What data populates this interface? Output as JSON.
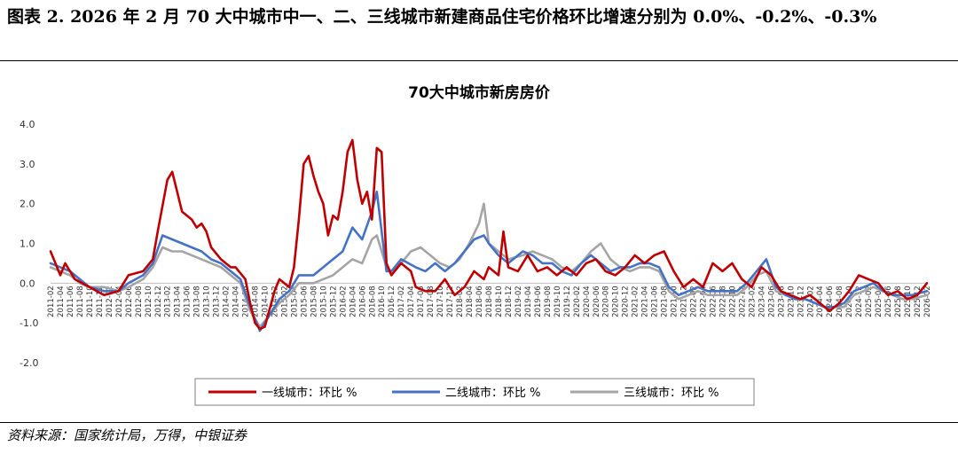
{
  "figure": {
    "title": "图表 2. 2026 年 2 月 70 大中城市中一、二、三线城市新建商品住宅价格环比增速分别为 0.0%、-0.2%、-0.3%",
    "source": "资料来源：国家统计局，万得，中银证券"
  },
  "chart_data": {
    "type": "line",
    "title": "70大中城市新房房价",
    "xlabel": "",
    "ylabel": "",
    "ylim": [
      -2.0,
      4.0
    ],
    "yticks": [
      "4.0",
      "3.0",
      "2.0",
      "1.0",
      "0.0",
      "-1.0",
      "-2.0"
    ],
    "grid": false,
    "legend_position": "bottom",
    "x_start": "2011-02",
    "x_end": "2026-02",
    "x_tick_step_months": 2,
    "series": [
      {
        "name": "一线城市：环比 %",
        "color": "#c00000",
        "points": [
          [
            "2011-02",
            0.8
          ],
          [
            "2011-04",
            0.2
          ],
          [
            "2011-05",
            0.5
          ],
          [
            "2011-07",
            0.1
          ],
          [
            "2011-10",
            -0.1
          ],
          [
            "2012-01",
            -0.3
          ],
          [
            "2012-04",
            -0.2
          ],
          [
            "2012-06",
            0.2
          ],
          [
            "2012-09",
            0.3
          ],
          [
            "2012-11",
            0.6
          ],
          [
            "2012-12",
            1.3
          ],
          [
            "2013-02",
            2.6
          ],
          [
            "2013-03",
            2.8
          ],
          [
            "2013-04",
            2.3
          ],
          [
            "2013-05",
            1.8
          ],
          [
            "2013-07",
            1.6
          ],
          [
            "2013-08",
            1.4
          ],
          [
            "2013-09",
            1.5
          ],
          [
            "2013-10",
            1.3
          ],
          [
            "2013-11",
            0.9
          ],
          [
            "2014-01",
            0.6
          ],
          [
            "2014-03",
            0.4
          ],
          [
            "2014-04",
            0.4
          ],
          [
            "2014-06",
            0.1
          ],
          [
            "2014-07",
            -0.5
          ],
          [
            "2014-08",
            -1.0
          ],
          [
            "2014-09",
            -1.15
          ],
          [
            "2014-10",
            -1.1
          ],
          [
            "2014-12",
            -0.2
          ],
          [
            "2015-01",
            0.1
          ],
          [
            "2015-03",
            -0.1
          ],
          [
            "2015-04",
            0.4
          ],
          [
            "2015-05",
            1.6
          ],
          [
            "2015-06",
            3.0
          ],
          [
            "2015-07",
            3.2
          ],
          [
            "2015-08",
            2.7
          ],
          [
            "2015-09",
            2.3
          ],
          [
            "2015-10",
            2.0
          ],
          [
            "2015-11",
            1.2
          ],
          [
            "2015-12",
            1.7
          ],
          [
            "2016-01",
            1.6
          ],
          [
            "2016-02",
            2.3
          ],
          [
            "2016-03",
            3.3
          ],
          [
            "2016-04",
            3.6
          ],
          [
            "2016-05",
            2.6
          ],
          [
            "2016-06",
            2.0
          ],
          [
            "2016-07",
            2.3
          ],
          [
            "2016-08",
            1.6
          ],
          [
            "2016-09",
            3.4
          ],
          [
            "2016-10",
            3.3
          ],
          [
            "2016-11",
            0.5
          ],
          [
            "2016-12",
            0.2
          ],
          [
            "2017-02",
            0.5
          ],
          [
            "2017-04",
            0.3
          ],
          [
            "2017-05",
            -0.1
          ],
          [
            "2017-07",
            -0.2
          ],
          [
            "2017-09",
            -0.2
          ],
          [
            "2017-11",
            0.1
          ],
          [
            "2018-01",
            -0.3
          ],
          [
            "2018-03",
            -0.1
          ],
          [
            "2018-05",
            0.3
          ],
          [
            "2018-07",
            0.1
          ],
          [
            "2018-08",
            0.4
          ],
          [
            "2018-09",
            0.3
          ],
          [
            "2018-10",
            0.2
          ],
          [
            "2018-11",
            1.3
          ],
          [
            "2018-12",
            0.4
          ],
          [
            "2019-02",
            0.3
          ],
          [
            "2019-04",
            0.7
          ],
          [
            "2019-06",
            0.3
          ],
          [
            "2019-08",
            0.4
          ],
          [
            "2019-10",
            0.2
          ],
          [
            "2019-12",
            0.4
          ],
          [
            "2020-02",
            0.2
          ],
          [
            "2020-04",
            0.5
          ],
          [
            "2020-06",
            0.6
          ],
          [
            "2020-08",
            0.3
          ],
          [
            "2020-10",
            0.2
          ],
          [
            "2020-12",
            0.4
          ],
          [
            "2021-02",
            0.7
          ],
          [
            "2021-04",
            0.5
          ],
          [
            "2021-06",
            0.7
          ],
          [
            "2021-08",
            0.8
          ],
          [
            "2021-10",
            0.3
          ],
          [
            "2021-12",
            -0.1
          ],
          [
            "2022-02",
            0.1
          ],
          [
            "2022-04",
            -0.1
          ],
          [
            "2022-06",
            0.5
          ],
          [
            "2022-08",
            0.3
          ],
          [
            "2022-10",
            0.5
          ],
          [
            "2022-12",
            0.1
          ],
          [
            "2023-02",
            -0.1
          ],
          [
            "2023-04",
            0.4
          ],
          [
            "2023-06",
            0.2
          ],
          [
            "2023-08",
            -0.2
          ],
          [
            "2023-10",
            -0.3
          ],
          [
            "2023-12",
            -0.4
          ],
          [
            "2024-02",
            -0.3
          ],
          [
            "2024-04",
            -0.5
          ],
          [
            "2024-06",
            -0.7
          ],
          [
            "2024-08",
            -0.5
          ],
          [
            "2024-10",
            -0.2
          ],
          [
            "2024-12",
            0.2
          ],
          [
            "2025-02",
            0.1
          ],
          [
            "2025-04",
            0.0
          ],
          [
            "2025-06",
            -0.3
          ],
          [
            "2025-08",
            -0.2
          ],
          [
            "2025-10",
            -0.4
          ],
          [
            "2025-12",
            -0.3
          ],
          [
            "2026-02",
            0.0
          ]
        ]
      },
      {
        "name": "二线城市：环比 %",
        "color": "#4472c4",
        "points": [
          [
            "2011-02",
            0.5
          ],
          [
            "2011-04",
            0.4
          ],
          [
            "2011-06",
            0.3
          ],
          [
            "2011-08",
            0.1
          ],
          [
            "2011-10",
            -0.1
          ],
          [
            "2012-01",
            -0.2
          ],
          [
            "2012-04",
            -0.2
          ],
          [
            "2012-06",
            0.0
          ],
          [
            "2012-09",
            0.2
          ],
          [
            "2012-11",
            0.5
          ],
          [
            "2013-01",
            1.2
          ],
          [
            "2013-03",
            1.1
          ],
          [
            "2013-05",
            1.0
          ],
          [
            "2013-07",
            0.9
          ],
          [
            "2013-09",
            0.8
          ],
          [
            "2013-11",
            0.6
          ],
          [
            "2014-01",
            0.5
          ],
          [
            "2014-03",
            0.3
          ],
          [
            "2014-05",
            0.1
          ],
          [
            "2014-07",
            -0.6
          ],
          [
            "2014-09",
            -1.2
          ],
          [
            "2014-11",
            -0.8
          ],
          [
            "2015-01",
            -0.4
          ],
          [
            "2015-03",
            -0.2
          ],
          [
            "2015-05",
            0.2
          ],
          [
            "2015-08",
            0.2
          ],
          [
            "2015-10",
            0.4
          ],
          [
            "2015-12",
            0.6
          ],
          [
            "2016-02",
            0.8
          ],
          [
            "2016-04",
            1.4
          ],
          [
            "2016-06",
            1.1
          ],
          [
            "2016-08",
            1.8
          ],
          [
            "2016-09",
            2.3
          ],
          [
            "2016-11",
            0.3
          ],
          [
            "2016-12",
            0.3
          ],
          [
            "2017-02",
            0.6
          ],
          [
            "2017-05",
            0.4
          ],
          [
            "2017-07",
            0.3
          ],
          [
            "2017-09",
            0.5
          ],
          [
            "2017-11",
            0.3
          ],
          [
            "2018-01",
            0.5
          ],
          [
            "2018-03",
            0.8
          ],
          [
            "2018-05",
            1.1
          ],
          [
            "2018-07",
            1.2
          ],
          [
            "2018-08",
            1.0
          ],
          [
            "2018-10",
            0.7
          ],
          [
            "2018-12",
            0.5
          ],
          [
            "2019-03",
            0.8
          ],
          [
            "2019-05",
            0.7
          ],
          [
            "2019-07",
            0.5
          ],
          [
            "2019-09",
            0.5
          ],
          [
            "2019-11",
            0.3
          ],
          [
            "2020-01",
            0.2
          ],
          [
            "2020-03",
            0.5
          ],
          [
            "2020-05",
            0.7
          ],
          [
            "2020-07",
            0.5
          ],
          [
            "2020-09",
            0.3
          ],
          [
            "2020-11",
            0.4
          ],
          [
            "2021-01",
            0.4
          ],
          [
            "2021-03",
            0.5
          ],
          [
            "2021-05",
            0.5
          ],
          [
            "2021-07",
            0.4
          ],
          [
            "2021-09",
            -0.1
          ],
          [
            "2021-11",
            -0.3
          ],
          [
            "2022-01",
            -0.2
          ],
          [
            "2022-03",
            -0.1
          ],
          [
            "2022-05",
            -0.2
          ],
          [
            "2022-07",
            -0.2
          ],
          [
            "2022-09",
            -0.2
          ],
          [
            "2022-11",
            -0.2
          ],
          [
            "2023-01",
            0.0
          ],
          [
            "2023-03",
            0.3
          ],
          [
            "2023-05",
            0.6
          ],
          [
            "2023-07",
            -0.1
          ],
          [
            "2023-09",
            -0.3
          ],
          [
            "2023-11",
            -0.4
          ],
          [
            "2024-01",
            -0.4
          ],
          [
            "2024-03",
            -0.5
          ],
          [
            "2024-05",
            -0.6
          ],
          [
            "2024-07",
            -0.6
          ],
          [
            "2024-09",
            -0.5
          ],
          [
            "2024-11",
            -0.2
          ],
          [
            "2025-01",
            -0.1
          ],
          [
            "2025-03",
            0.0
          ],
          [
            "2025-05",
            -0.2
          ],
          [
            "2025-07",
            -0.3
          ],
          [
            "2025-09",
            -0.3
          ],
          [
            "2025-11",
            -0.3
          ],
          [
            "2026-02",
            -0.2
          ]
        ]
      },
      {
        "name": "三线城市：环比 %",
        "color": "#a5a5a5",
        "points": [
          [
            "2011-02",
            0.4
          ],
          [
            "2011-04",
            0.3
          ],
          [
            "2011-06",
            0.2
          ],
          [
            "2011-08",
            0.0
          ],
          [
            "2011-10",
            -0.1
          ],
          [
            "2012-01",
            -0.1
          ],
          [
            "2012-04",
            -0.2
          ],
          [
            "2012-06",
            -0.1
          ],
          [
            "2012-09",
            0.1
          ],
          [
            "2012-11",
            0.4
          ],
          [
            "2013-01",
            0.9
          ],
          [
            "2013-03",
            0.8
          ],
          [
            "2013-05",
            0.8
          ],
          [
            "2013-07",
            0.7
          ],
          [
            "2013-09",
            0.6
          ],
          [
            "2013-11",
            0.5
          ],
          [
            "2014-01",
            0.4
          ],
          [
            "2014-03",
            0.2
          ],
          [
            "2014-05",
            0.0
          ],
          [
            "2014-07",
            -0.7
          ],
          [
            "2014-09",
            -1.1
          ],
          [
            "2014-11",
            -0.8
          ],
          [
            "2015-01",
            -0.5
          ],
          [
            "2015-03",
            -0.3
          ],
          [
            "2015-05",
            0.0
          ],
          [
            "2015-08",
            0.0
          ],
          [
            "2015-10",
            0.1
          ],
          [
            "2015-12",
            0.2
          ],
          [
            "2016-02",
            0.4
          ],
          [
            "2016-04",
            0.6
          ],
          [
            "2016-06",
            0.5
          ],
          [
            "2016-08",
            1.1
          ],
          [
            "2016-09",
            1.2
          ],
          [
            "2016-11",
            0.4
          ],
          [
            "2016-12",
            0.3
          ],
          [
            "2017-02",
            0.5
          ],
          [
            "2017-04",
            0.8
          ],
          [
            "2017-06",
            0.9
          ],
          [
            "2017-08",
            0.7
          ],
          [
            "2017-10",
            0.5
          ],
          [
            "2017-12",
            0.4
          ],
          [
            "2018-02",
            0.6
          ],
          [
            "2018-04",
            1.0
          ],
          [
            "2018-06",
            1.5
          ],
          [
            "2018-07",
            2.0
          ],
          [
            "2018-08",
            1.0
          ],
          [
            "2018-10",
            0.8
          ],
          [
            "2018-12",
            0.6
          ],
          [
            "2019-03",
            0.7
          ],
          [
            "2019-05",
            0.8
          ],
          [
            "2019-07",
            0.7
          ],
          [
            "2019-09",
            0.6
          ],
          [
            "2019-11",
            0.4
          ],
          [
            "2020-01",
            0.3
          ],
          [
            "2020-03",
            0.5
          ],
          [
            "2020-05",
            0.8
          ],
          [
            "2020-07",
            1.0
          ],
          [
            "2020-09",
            0.6
          ],
          [
            "2020-11",
            0.4
          ],
          [
            "2021-01",
            0.3
          ],
          [
            "2021-03",
            0.4
          ],
          [
            "2021-05",
            0.4
          ],
          [
            "2021-07",
            0.3
          ],
          [
            "2021-09",
            -0.2
          ],
          [
            "2021-11",
            -0.4
          ],
          [
            "2022-01",
            -0.3
          ],
          [
            "2022-03",
            -0.2
          ],
          [
            "2022-05",
            -0.3
          ],
          [
            "2022-07",
            -0.3
          ],
          [
            "2022-09",
            -0.3
          ],
          [
            "2022-11",
            -0.3
          ],
          [
            "2023-01",
            -0.1
          ],
          [
            "2023-03",
            0.2
          ],
          [
            "2023-05",
            0.3
          ],
          [
            "2023-07",
            -0.2
          ],
          [
            "2023-09",
            -0.3
          ],
          [
            "2023-11",
            -0.4
          ],
          [
            "2024-01",
            -0.4
          ],
          [
            "2024-03",
            -0.5
          ],
          [
            "2024-05",
            -0.6
          ],
          [
            "2024-07",
            -0.6
          ],
          [
            "2024-09",
            -0.6
          ],
          [
            "2024-11",
            -0.3
          ],
          [
            "2025-01",
            -0.2
          ],
          [
            "2025-03",
            -0.1
          ],
          [
            "2025-05",
            -0.2
          ],
          [
            "2025-07",
            -0.3
          ],
          [
            "2025-09",
            -0.4
          ],
          [
            "2025-11",
            -0.4
          ],
          [
            "2026-02",
            -0.3
          ]
        ]
      }
    ]
  }
}
